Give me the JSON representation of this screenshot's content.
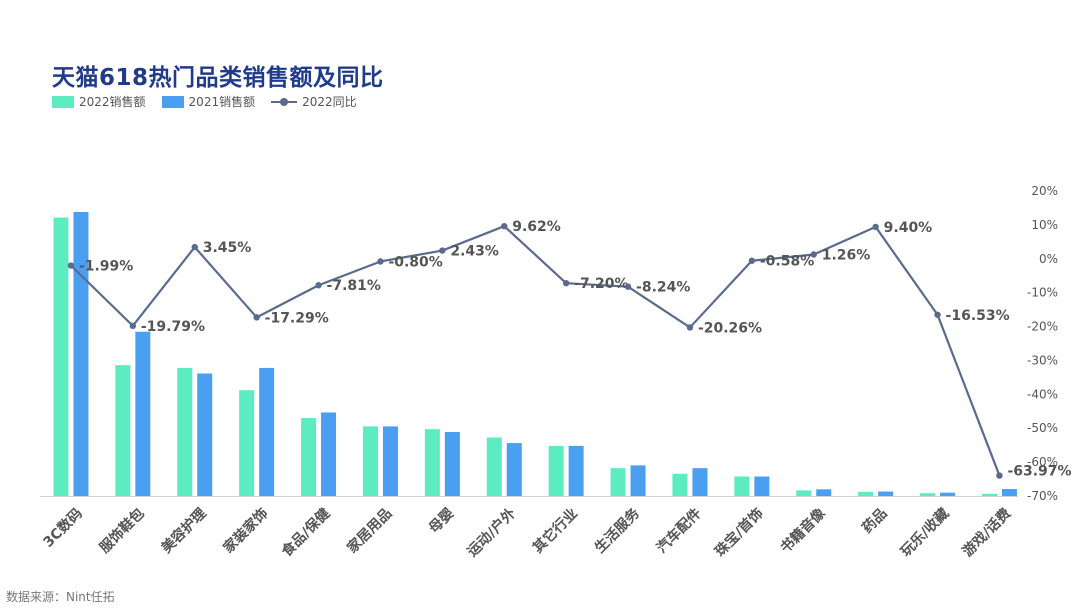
{
  "title": "天猫618热门品类销售额及同比",
  "source": "数据来源：Nint任拓",
  "colors": {
    "bar2022": "#5cecc0",
    "bar2021": "#4a9ff0",
    "line": "#5a6b8f",
    "axis_text": "#555555",
    "label_text": "#555555"
  },
  "chart_data": {
    "type": "bar",
    "categories": [
      "3C数码",
      "服饰鞋包",
      "美容护理",
      "家装家饰",
      "食品/保健",
      "家居用品",
      "母婴",
      "运动/户外",
      "其它行业",
      "生活服务",
      "汽车配件",
      "珠宝/首饰",
      "书籍音像",
      "药品",
      "玩乐/收藏",
      "游戏/话费"
    ],
    "series": [
      {
        "name": "2022销售额",
        "type": "bar",
        "values": [
          100,
          47,
          46,
          38,
          28,
          25,
          24,
          21,
          18,
          10,
          8,
          7,
          2,
          1.5,
          1,
          0.8
        ]
      },
      {
        "name": "2021销售额",
        "type": "bar",
        "values": [
          102,
          59,
          44,
          46,
          30,
          25,
          23,
          19,
          18,
          11,
          10,
          7,
          2.4,
          1.6,
          1.2,
          2.5
        ]
      },
      {
        "name": "2022同比",
        "type": "line",
        "axis": "right",
        "unit": "%",
        "values": [
          -1.99,
          -19.79,
          3.45,
          -17.29,
          -7.81,
          -0.8,
          2.43,
          9.62,
          -7.2,
          -8.24,
          -20.26,
          -0.58,
          1.26,
          9.4,
          -16.53,
          -63.97
        ],
        "labels": [
          "-1.99%",
          "-19.79%",
          "3.45%",
          "-17.29%",
          "-7.81%",
          "-0.80%",
          "2.43%",
          "9.62%",
          "-7.20%",
          "-8.24%",
          "-20.26%",
          "-0.58%",
          "1.26%",
          "9.40%",
          "-16.53%",
          "-63.97%"
        ]
      }
    ],
    "bar_ylim": [
      0,
      110
    ],
    "y2lim": [
      -70,
      20
    ],
    "y2_ticks": [
      "20%",
      "10%",
      "0%",
      "-10%",
      "-20%",
      "-30%",
      "-40%",
      "-50%",
      "-60%",
      "-70%"
    ],
    "legend": {
      "position": "top-left"
    },
    "grid": false
  }
}
